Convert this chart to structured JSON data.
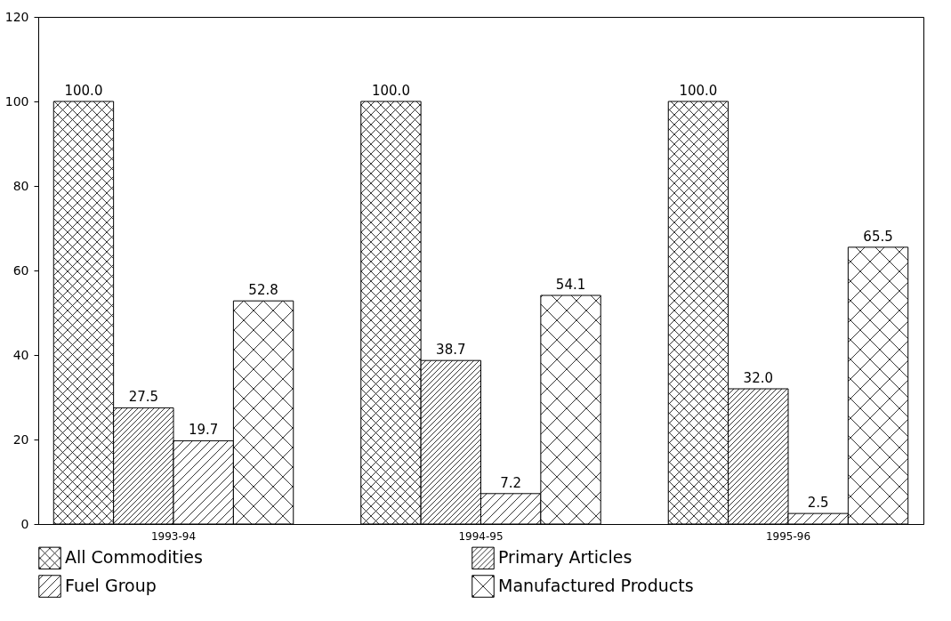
{
  "chart_data": {
    "type": "bar",
    "categories": [
      "1993-94",
      "1994-95",
      "1995-96"
    ],
    "series": [
      {
        "name": "All Commodities",
        "color": "#000000",
        "values": [
          100.0,
          100.0,
          100.0
        ],
        "value_labels": [
          "100.0",
          "100.0",
          "100.0"
        ]
      },
      {
        "name": "Primary Articles",
        "color": "#000000",
        "values": [
          27.5,
          38.7,
          32.0
        ],
        "value_labels": [
          "27.5",
          "38.7",
          "32.0"
        ]
      },
      {
        "name": "Fuel Group",
        "color": "#000000",
        "values": [
          19.7,
          7.2,
          2.5
        ],
        "value_labels": [
          "19.7",
          "7.2",
          "2.5"
        ]
      },
      {
        "name": "Manufactured Products",
        "color": "#000000",
        "values": [
          52.8,
          54.1,
          65.5
        ],
        "value_labels": [
          "52.8",
          "54.1",
          "65.5"
        ]
      }
    ],
    "ylim": [
      0,
      120
    ],
    "yticks": [
      0,
      20,
      40,
      60,
      80,
      100,
      120
    ],
    "grid": false,
    "legend": "bottom"
  }
}
